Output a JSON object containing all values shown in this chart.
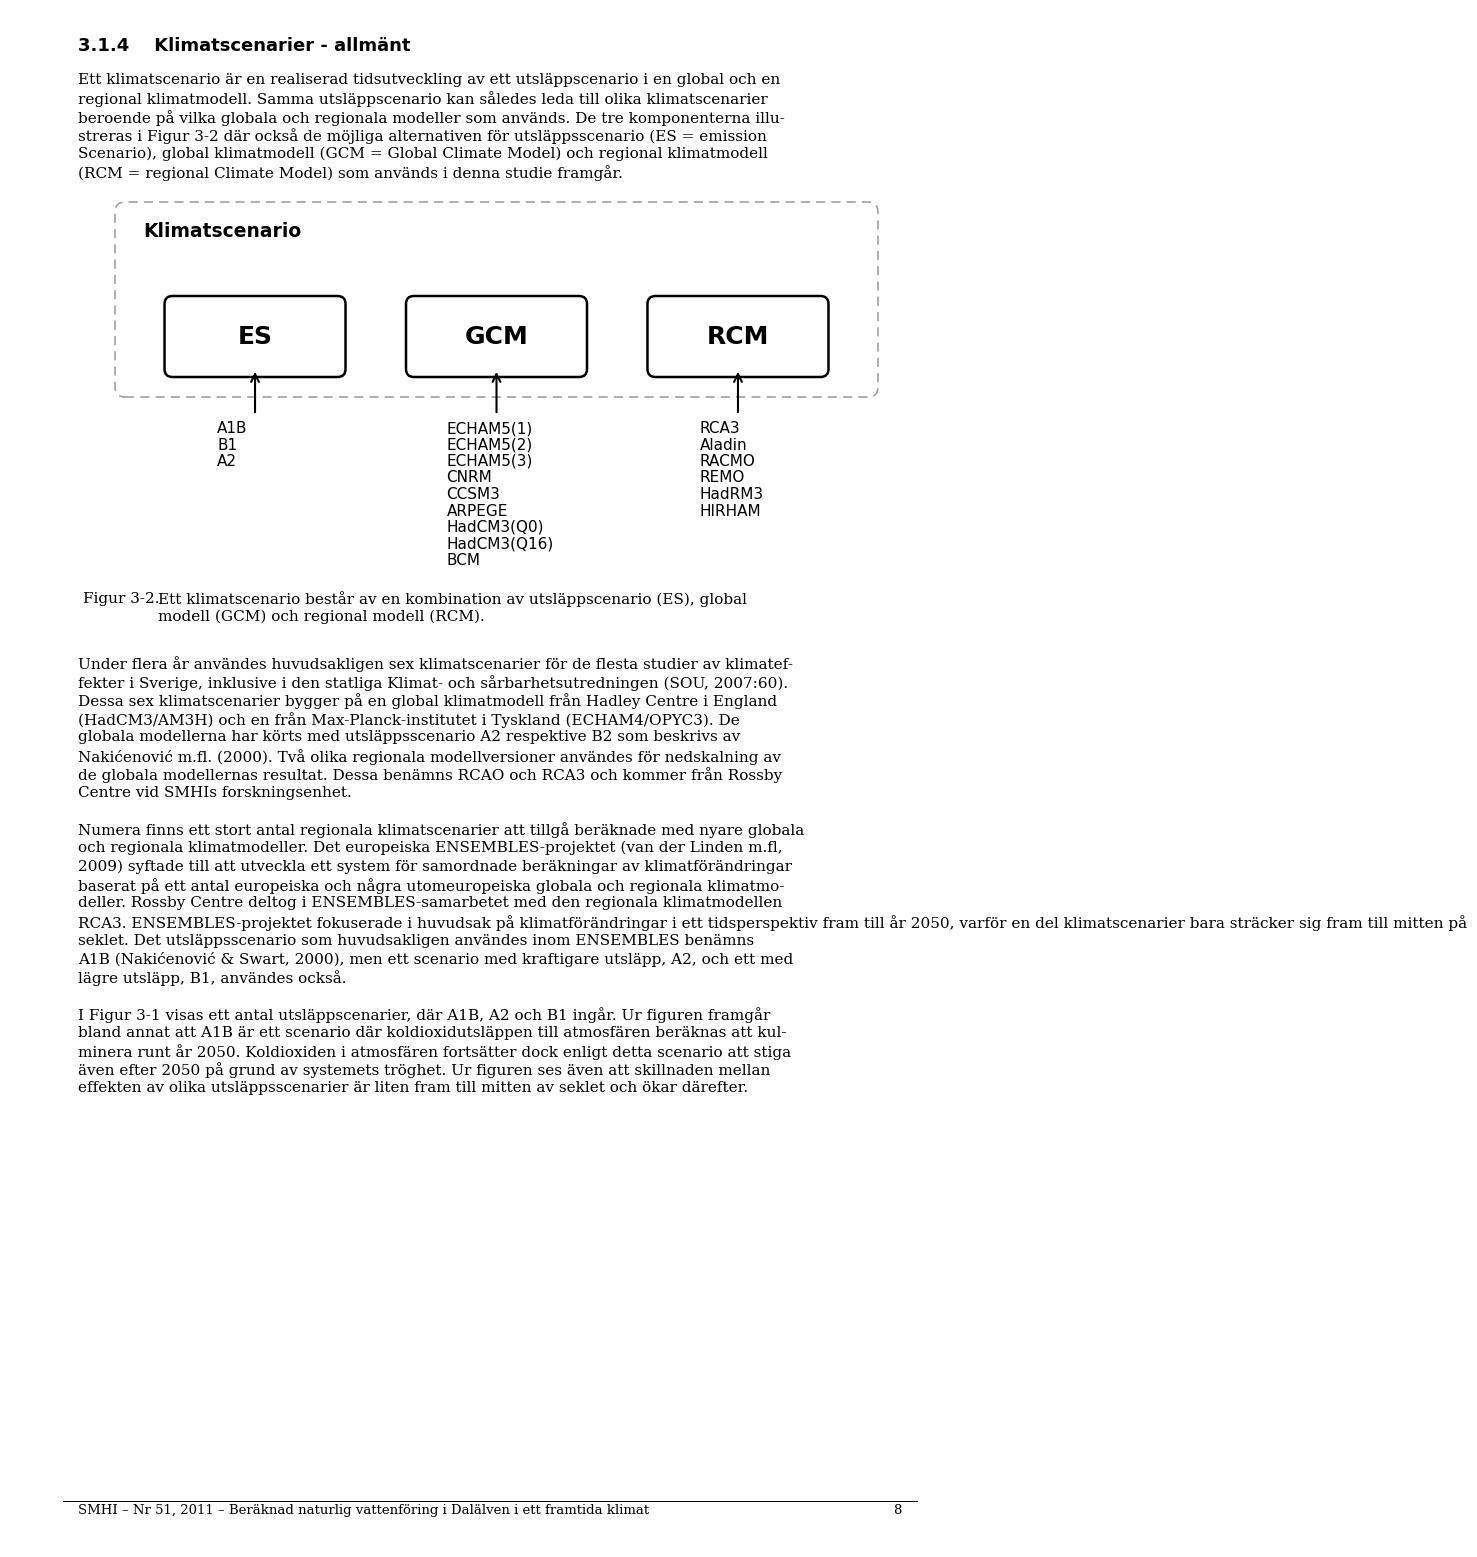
{
  "title": "3.1.4    Klimatscenarier - allmänt",
  "diagram_title": "Klimatscenario",
  "box_labels": [
    "ES",
    "GCM",
    "RCM"
  ],
  "es_items": [
    "A1B",
    "B1",
    "A2"
  ],
  "gcm_items": [
    "ECHAM5(1)",
    "ECHAM5(2)",
    "ECHAM5(3)",
    "CNRM",
    "CCSM3",
    "ARPEGE",
    "HadCM3(Q0)",
    "HadCM3(Q16)",
    "BCM"
  ],
  "rcm_items": [
    "RCA3",
    "Aladin",
    "RACMO",
    "REMO",
    "HadRM3",
    "HIRHAM"
  ],
  "fig_label": "Figur 3-2.",
  "fig_cap_line1": "Ett klimatscenario består av en kombination av utsläppscenario (ES), global",
  "fig_cap_line2": "modell (GCM) och regional modell (RCM).",
  "para1_lines": [
    "Ett klimatscenario är en realiserad tidsutveckling av ett utsläppscenario i en global och en",
    "regional klimatmodell. Samma utsläppscenario kan således leda till olika klimatscenarier",
    "beroende på vilka globala och regionala modeller som används. De tre komponenterna illu-",
    "streras i Figur 3-2 där också de möjliga alternativen för utsläppsscenario (ES = emission",
    "Scenario), global klimatmodell (GCM = Global Climate Model) och regional klimatmodell",
    "(RCM = regional Climate Model) som används i denna studie framgår."
  ],
  "para2_lines": [
    "Under flera år användes huvudsakligen sex klimatscenarier för de flesta studier av klimatef-",
    "fekter i Sverige, inklusive i den statliga Klimat- och sårbarhetsutredningen (SOU, 2007:60).",
    "Dessa sex klimatscenarier bygger på en global klimatmodell från Hadley Centre i England",
    "(HadCM3/AM3H) och en från Max-Planck-institutet i Tyskland (ECHAM4/OPYC3). De",
    "globala modellerna har körts med utsläppsscenario A2 respektive B2 som beskrivs av",
    "Nakićenović m.fl. (2000). Två olika regionala modellversioner användes för nedskalning av",
    "de globala modellernas resultat. Dessa benämns RCAO och RCA3 och kommer från Rossby",
    "Centre vid SMHIs forskningsenhet."
  ],
  "para3_lines": [
    "Numera finns ett stort antal regionala klimatscenarier att tillgå beräknade med nyare globala",
    "och regionala klimatmodeller. Det europeiska ENSEMBLES-projektet (van der Linden m.fl,",
    "2009) syftade till att utveckla ett system för samordnade beräkningar av klimatförändringar",
    "baserat på ett antal europeiska och några utomeuropeiska globala och regionala klimatmo-",
    "deller. Rossby Centre deltog i ENSEMBLES-samarbetet med den regionala klimatmodellen",
    "RCA3. ENSEMBLES-projektet fokuserade i huvudsak på klimatförändringar i ett tidsperspektiv fram till år 2050, varför en del klimatscenarier bara sträcker sig fram till mitten på",
    "seklet. Det utsläppsscenario som huvudsakligen användes inom ENSEMBLES benämns",
    "A1B (Nakićenović & Swart, 2000), men ett scenario med kraftigare utsläpp, A2, och ett med",
    "lägre utsläpp, B1, användes också."
  ],
  "para4_lines": [
    "I Figur 3-1 visas ett antal utsläppscenarier, där A1B, A2 och B1 ingår. Ur figuren framgår",
    "bland annat att A1B är ett scenario där koldioxidutsläppen till atmosfären beräknas att kul-",
    "minera runt år 2050. Koldioxiden i atmosfären fortsätter dock enligt detta scenario att stiga",
    "även efter 2050 på grund av systemets tröghet. Ur figuren ses även att skillnaden mellan",
    "effekten av olika utsläppsscenarier är liten fram till mitten av seklet och ökar därefter."
  ],
  "footer": "SMHI – Nr 51, 2011 – Beräknad naturlig vattenföring i Dalälven i ett framtida klimat",
  "page_num": "8"
}
